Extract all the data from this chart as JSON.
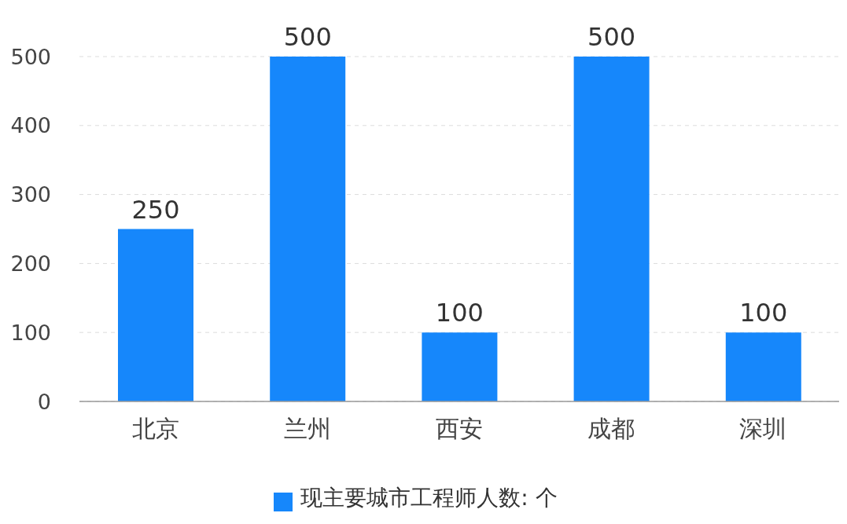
{
  "chart_data": {
    "type": "bar",
    "categories": [
      "北京",
      "兰州",
      "西安",
      "成都",
      "深圳"
    ],
    "series": [
      {
        "name": "现主要城市工程师人数: 个",
        "color": "#1687fb",
        "values": [
          250,
          500,
          100,
          500,
          100
        ]
      }
    ],
    "ylim": [
      0,
      500
    ],
    "yticks": [
      0,
      100,
      200,
      300,
      400,
      500
    ],
    "grid": "y",
    "legend": "bottom",
    "data_labels": true
  }
}
